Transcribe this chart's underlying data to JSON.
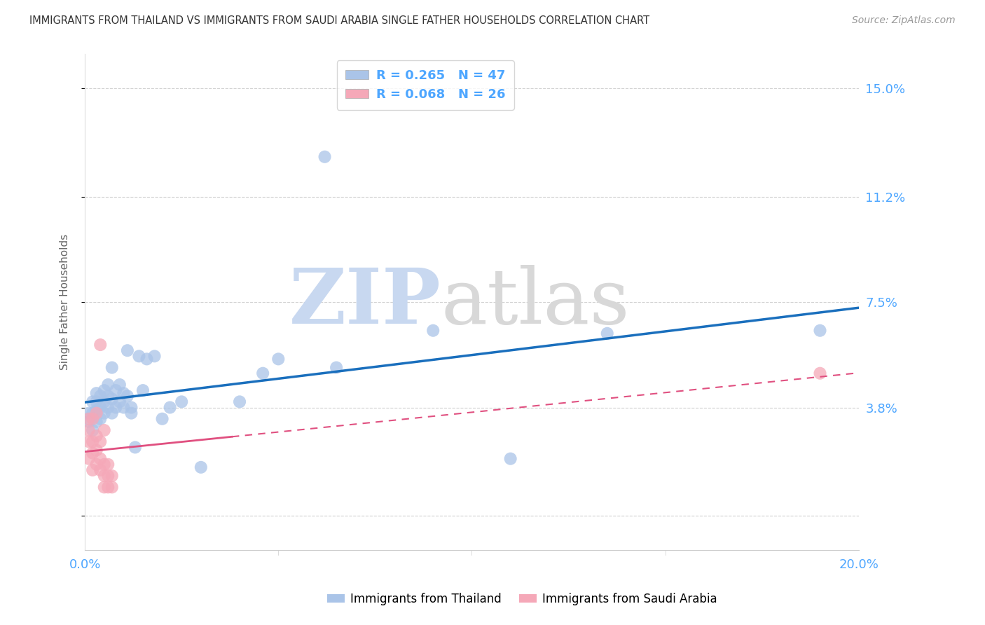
{
  "title": "IMMIGRANTS FROM THAILAND VS IMMIGRANTS FROM SAUDI ARABIA SINGLE FATHER HOUSEHOLDS CORRELATION CHART",
  "source": "Source: ZipAtlas.com",
  "ylabel": "Single Father Households",
  "xlim": [
    0.0,
    0.2
  ],
  "ylim": [
    -0.012,
    0.162
  ],
  "yticks": [
    0.0,
    0.038,
    0.075,
    0.112,
    0.15
  ],
  "ytick_labels": [
    "",
    "3.8%",
    "7.5%",
    "11.2%",
    "15.0%"
  ],
  "xticks": [
    0.0,
    0.05,
    0.1,
    0.15,
    0.2
  ],
  "xtick_labels": [
    "0.0%",
    "",
    "",
    "",
    "20.0%"
  ],
  "thailand_scatter": [
    [
      0.001,
      0.033
    ],
    [
      0.001,
      0.036
    ],
    [
      0.002,
      0.03
    ],
    [
      0.002,
      0.036
    ],
    [
      0.002,
      0.04
    ],
    [
      0.003,
      0.033
    ],
    [
      0.003,
      0.037
    ],
    [
      0.003,
      0.04
    ],
    [
      0.003,
      0.043
    ],
    [
      0.004,
      0.034
    ],
    [
      0.004,
      0.038
    ],
    [
      0.004,
      0.042
    ],
    [
      0.005,
      0.036
    ],
    [
      0.005,
      0.04
    ],
    [
      0.005,
      0.044
    ],
    [
      0.006,
      0.038
    ],
    [
      0.006,
      0.042
    ],
    [
      0.006,
      0.046
    ],
    [
      0.007,
      0.036
    ],
    [
      0.007,
      0.041
    ],
    [
      0.007,
      0.052
    ],
    [
      0.008,
      0.038
    ],
    [
      0.008,
      0.044
    ],
    [
      0.009,
      0.04
    ],
    [
      0.009,
      0.046
    ],
    [
      0.01,
      0.038
    ],
    [
      0.01,
      0.043
    ],
    [
      0.011,
      0.042
    ],
    [
      0.011,
      0.058
    ],
    [
      0.012,
      0.036
    ],
    [
      0.012,
      0.038
    ],
    [
      0.013,
      0.024
    ],
    [
      0.014,
      0.056
    ],
    [
      0.015,
      0.044
    ],
    [
      0.016,
      0.055
    ],
    [
      0.018,
      0.056
    ],
    [
      0.02,
      0.034
    ],
    [
      0.022,
      0.038
    ],
    [
      0.025,
      0.04
    ],
    [
      0.03,
      0.017
    ],
    [
      0.04,
      0.04
    ],
    [
      0.046,
      0.05
    ],
    [
      0.05,
      0.055
    ],
    [
      0.065,
      0.052
    ],
    [
      0.09,
      0.065
    ],
    [
      0.135,
      0.064
    ],
    [
      0.19,
      0.065
    ],
    [
      0.062,
      0.126
    ],
    [
      0.11,
      0.02
    ]
  ],
  "saudi_scatter": [
    [
      0.001,
      0.02
    ],
    [
      0.001,
      0.026
    ],
    [
      0.001,
      0.03
    ],
    [
      0.001,
      0.034
    ],
    [
      0.002,
      0.016
    ],
    [
      0.002,
      0.022
    ],
    [
      0.002,
      0.026
    ],
    [
      0.002,
      0.034
    ],
    [
      0.003,
      0.018
    ],
    [
      0.003,
      0.023
    ],
    [
      0.003,
      0.028
    ],
    [
      0.003,
      0.036
    ],
    [
      0.004,
      0.016
    ],
    [
      0.004,
      0.02
    ],
    [
      0.004,
      0.026
    ],
    [
      0.004,
      0.06
    ],
    [
      0.005,
      0.01
    ],
    [
      0.005,
      0.014
    ],
    [
      0.005,
      0.018
    ],
    [
      0.005,
      0.03
    ],
    [
      0.006,
      0.01
    ],
    [
      0.006,
      0.014
    ],
    [
      0.006,
      0.018
    ],
    [
      0.007,
      0.01
    ],
    [
      0.007,
      0.014
    ],
    [
      0.19,
      0.05
    ]
  ],
  "thailand_line_color": "#1a6fbd",
  "saudi_line_color": "#e05080",
  "thailand_scatter_color": "#aac4e8",
  "saudi_scatter_color": "#f5a8b8",
  "background_color": "#ffffff",
  "grid_color": "#d0d0d0",
  "tick_color": "#4da6ff",
  "title_color": "#333333"
}
